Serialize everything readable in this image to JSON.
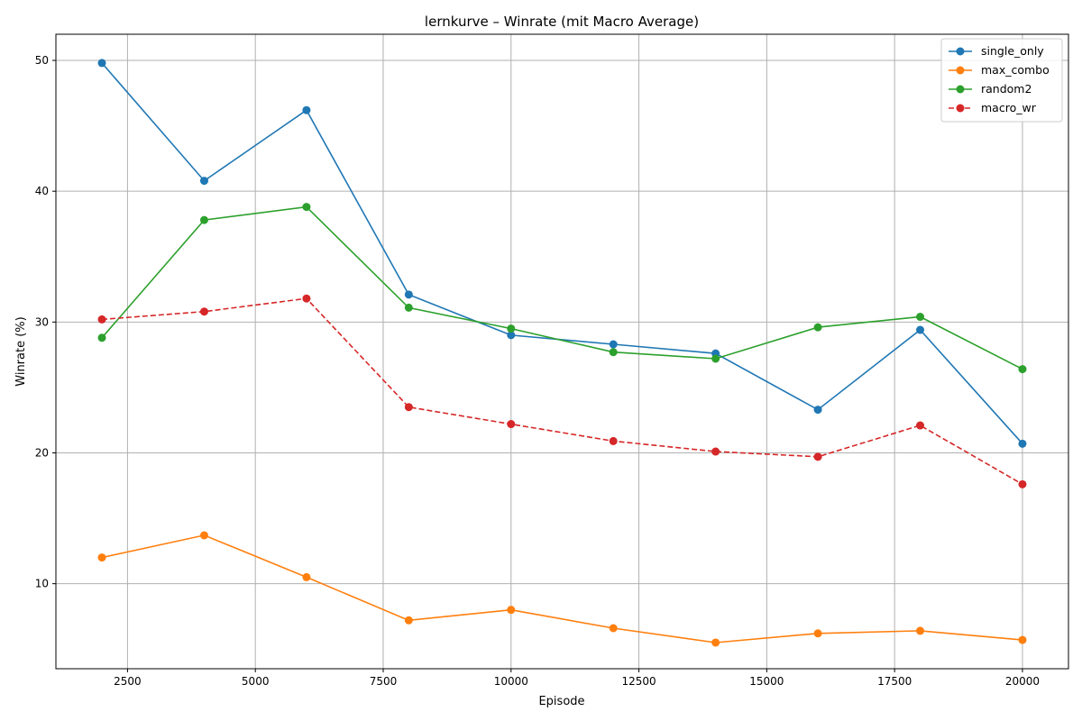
{
  "chart_data": {
    "type": "line",
    "title": "lernkurve – Winrate (mit Macro Average)",
    "xlabel": "Episode",
    "ylabel": "Winrate (%)",
    "xlim": [
      1100,
      20900
    ],
    "ylim": [
      3.5,
      52.0
    ],
    "xticks": [
      2500,
      5000,
      7500,
      10000,
      12500,
      15000,
      17500,
      20000
    ],
    "yticks": [
      10,
      20,
      30,
      40,
      50
    ],
    "grid": true,
    "legend_position": "top-right",
    "x": [
      2000,
      4000,
      6000,
      8000,
      10000,
      12000,
      14000,
      16000,
      18000,
      20000
    ],
    "series": [
      {
        "name": "single_only",
        "color": "#1f77b4",
        "dashed": false,
        "values": [
          49.8,
          40.8,
          46.2,
          32.1,
          29.0,
          28.3,
          27.6,
          23.3,
          29.4,
          20.7
        ]
      },
      {
        "name": "max_combo",
        "color": "#ff7f0e",
        "dashed": false,
        "values": [
          12.0,
          13.7,
          10.5,
          7.2,
          8.0,
          6.6,
          5.5,
          6.2,
          6.4,
          5.7
        ]
      },
      {
        "name": "random2",
        "color": "#2ca02c",
        "dashed": false,
        "values": [
          28.8,
          37.8,
          38.8,
          31.1,
          29.5,
          27.7,
          27.2,
          29.6,
          30.4,
          26.4
        ]
      },
      {
        "name": "macro_wr",
        "color": "#d62728",
        "dashed": true,
        "values": [
          30.2,
          30.8,
          31.8,
          23.5,
          22.2,
          20.9,
          20.1,
          19.7,
          22.1,
          17.6
        ]
      }
    ]
  }
}
